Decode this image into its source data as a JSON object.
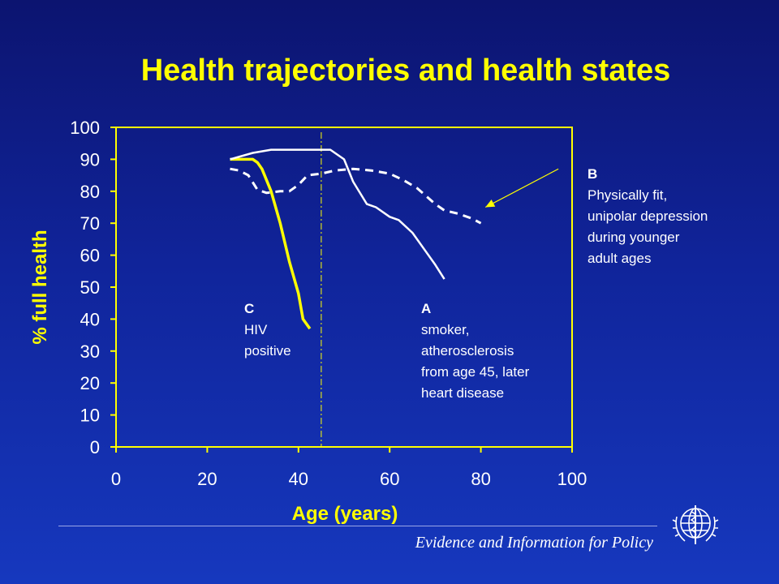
{
  "slide": {
    "title": "Health trajectories and health states",
    "footer": "Evidence and Information for Policy"
  },
  "colors": {
    "axis": "#ffff00",
    "series_C": "#ffff00",
    "series_A": "#ffffff",
    "series_B": "#ffffff",
    "background": "#1428a0"
  },
  "logo": {
    "icon": "who-emblem-icon"
  },
  "annotations": {
    "C": {
      "label": "C",
      "lines": [
        "HIV",
        "positive"
      ]
    },
    "A": {
      "label": "A",
      "lines": [
        "smoker,",
        "atherosclerosis",
        "from age 45, later",
        "heart disease"
      ]
    },
    "B": {
      "label": "B",
      "lines": [
        "Physically fit,",
        "unipolar depression",
        "during younger",
        "adult ages"
      ]
    }
  },
  "chart_data": {
    "type": "line",
    "title": "Health trajectories and health states",
    "xlabel": "Age (years)",
    "ylabel": "% full health",
    "xlim": [
      0,
      100
    ],
    "ylim": [
      0,
      100
    ],
    "xticks": [
      0,
      20,
      40,
      60,
      80,
      100
    ],
    "yticks": [
      0,
      10,
      20,
      30,
      40,
      50,
      60,
      70,
      80,
      90,
      100
    ],
    "grid": false,
    "reference_line": {
      "x": 45,
      "style": "dash-dot"
    },
    "arrow": {
      "from": [
        97,
        87
      ],
      "to": [
        81,
        75
      ]
    },
    "series": [
      {
        "name": "C",
        "style": "solid-thick",
        "x": [
          25,
          30,
          31,
          32,
          34,
          36,
          38,
          40,
          41,
          42.5
        ],
        "y": [
          90,
          90,
          89,
          87,
          80,
          70,
          58,
          48,
          40,
          37
        ]
      },
      {
        "name": "A",
        "style": "solid",
        "x": [
          25,
          30,
          34,
          38,
          45,
          47,
          50,
          52,
          55,
          57,
          60,
          62,
          65,
          68,
          70,
          72
        ],
        "y": [
          90,
          92,
          93,
          93,
          93,
          93,
          90,
          83,
          76,
          75,
          72,
          71,
          67,
          61,
          57,
          52.5
        ]
      },
      {
        "name": "B",
        "style": "dashed-thick",
        "x": [
          25,
          27,
          29,
          31,
          33,
          36,
          38,
          40,
          42,
          45,
          48,
          52,
          56,
          60,
          63,
          66,
          70,
          72,
          75,
          78,
          80
        ],
        "y": [
          87,
          86.5,
          85,
          80.5,
          79.5,
          80,
          80,
          82,
          85,
          85.5,
          86.5,
          87,
          86.5,
          85.5,
          83.5,
          81,
          76,
          74,
          73,
          71.5,
          70
        ]
      }
    ]
  }
}
